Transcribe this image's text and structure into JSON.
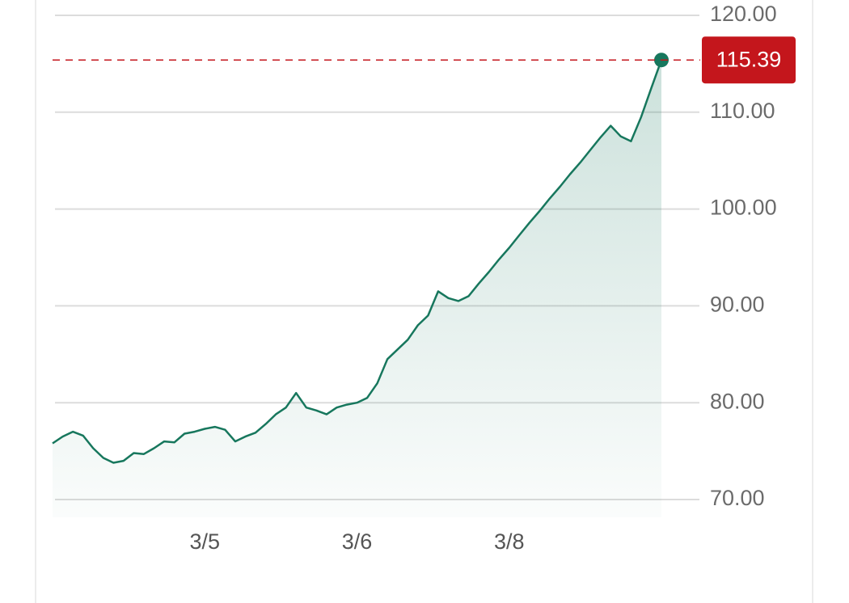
{
  "chart_data": {
    "type": "line",
    "categories": [
      null,
      null,
      null,
      null,
      null,
      null,
      null,
      null,
      null,
      null,
      null,
      null,
      null,
      null,
      null,
      "3/5",
      null,
      null,
      null,
      null,
      null,
      null,
      null,
      null,
      null,
      null,
      null,
      null,
      null,
      null,
      "3/6",
      null,
      null,
      null,
      null,
      null,
      null,
      null,
      null,
      null,
      null,
      null,
      null,
      null,
      null,
      "3/8",
      null,
      null,
      null,
      null,
      null,
      null,
      null,
      null,
      null,
      null,
      null,
      null,
      null,
      null,
      null
    ],
    "series": [
      {
        "color": "#17775d",
        "values": [
          75.8,
          76.5,
          77.0,
          76.6,
          75.3,
          74.3,
          73.8,
          74.0,
          74.8,
          74.7,
          75.3,
          76.0,
          75.9,
          76.8,
          77.0,
          77.3,
          77.5,
          77.2,
          76.0,
          76.5,
          76.9,
          77.8,
          78.8,
          79.5,
          81.0,
          79.5,
          79.2,
          78.8,
          79.5,
          79.8,
          80.0,
          80.5,
          82.0,
          84.5,
          85.5,
          86.5,
          88.0,
          89.0,
          91.5,
          90.8,
          90.5,
          91.0,
          92.3,
          93.5,
          94.8,
          96.0,
          97.3,
          98.6,
          99.8,
          101.1,
          102.3,
          103.6,
          104.8,
          106.1,
          107.4,
          108.6,
          107.5,
          107.0,
          109.5,
          112.5,
          115.39
        ]
      }
    ],
    "last_price": 115.39,
    "last_price_color": "#c4161c",
    "ylim": [
      70,
      120
    ],
    "yticks": [
      {
        "value": 70,
        "label": "70.00"
      },
      {
        "value": 80,
        "label": "80.00"
      },
      {
        "value": 90,
        "label": "90.00"
      },
      {
        "value": 100,
        "label": "100.00"
      },
      {
        "value": 110,
        "label": "110.00"
      },
      {
        "value": 120,
        "label": "120.00"
      }
    ],
    "grid": true
  }
}
